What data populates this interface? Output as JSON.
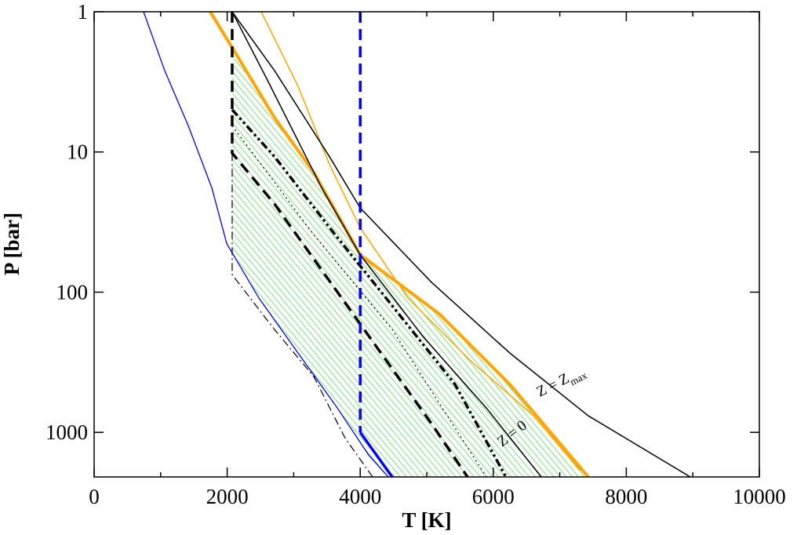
{
  "chart_data": {
    "type": "line",
    "xlabel": "T [K]",
    "ylabel": "P [bar]",
    "xlim": [
      0,
      10000
    ],
    "xticks": [
      0,
      2000,
      4000,
      6000,
      8000,
      10000
    ],
    "xminorticks": [
      1000,
      3000,
      5000,
      7000,
      9000
    ],
    "ylim": [
      1,
      2080
    ],
    "yticks": [
      1,
      10,
      100,
      1000
    ],
    "ylog": true,
    "yinverted": true,
    "grid": false,
    "hatch_color": "#33cc33",
    "series": [
      {
        "color": "#0000ff",
        "width": 1.3,
        "style": "solid",
        "x": [
          743,
          1061,
          1415,
          1769,
          1993,
          2476,
          3066,
          3656,
          4127,
          4422
        ],
        "values": [
          1,
          2.63,
          6.5,
          18,
          45,
          110,
          272,
          670,
          1452,
          2080
        ]
      },
      {
        "color": "#ffa500",
        "width": 4,
        "style": "solid",
        "x": [
          1745,
          2075,
          2712,
          3302,
          3998,
          5189,
          6250,
          7429
        ],
        "values": [
          1,
          1.8,
          5.7,
          14,
          54,
          143,
          455,
          2080
        ]
      },
      {
        "color": "#ffa500",
        "width": 1.5,
        "style": "solid",
        "x": [
          2512,
          3066,
          3538,
          3998,
          4717,
          5660,
          6604,
          7311
        ],
        "values": [
          1,
          3.4,
          12.3,
          34.6,
          110,
          309,
          762,
          1879
        ]
      },
      {
        "color": "#000000",
        "width": 1.5,
        "style": "solid",
        "x": [
          2075,
          2712,
          3538,
          3998,
          5071,
          6250,
          7429,
          8962
        ],
        "values": [
          1,
          2.63,
          10.8,
          25,
          85,
          272,
          762,
          2080
        ]
      },
      {
        "color": "#000000",
        "width": 1.5,
        "style": "solid",
        "x": [
          2075,
          2594,
          3420,
          3998,
          4953,
          5896,
          6722
        ],
        "values": [
          1,
          3,
          18,
          54,
          210,
          670,
          2080
        ]
      },
      {
        "color": "#000000",
        "width": 3.5,
        "style": "dashed",
        "x": [
          2075,
          2075,
          2712,
          3302,
          3892,
          4481,
          5071,
          5613
        ],
        "values": [
          1,
          10.2,
          23.5,
          58,
          143,
          352,
          866,
          2080
        ]
      },
      {
        "color": "#000000",
        "width": 3.5,
        "style": "dashdotdot",
        "x": [
          2075,
          2712,
          3538,
          4481,
          5425,
          6191
        ],
        "values": [
          5,
          10.8,
          34.6,
          125,
          455,
          2080
        ]
      },
      {
        "color": "#000000",
        "width": 1.2,
        "style": "dotted",
        "x": [
          2075,
          3302,
          4481,
          5896
        ],
        "values": [
          6.5,
          39,
          185,
          2080
        ]
      },
      {
        "color": "#000000",
        "width": 1.2,
        "style": "dashdot",
        "x": [
          2075,
          2075,
          2712,
          3302,
          3774,
          4186
        ],
        "values": [
          10.2,
          75,
          185,
          400,
          1100,
          2080
        ]
      },
      {
        "color": "#0000ff",
        "width": 3.5,
        "style": "dashed",
        "x": [
          4000,
          4000
        ],
        "values": [
          1,
          1000
        ]
      },
      {
        "color": "#0000ff",
        "width": 3.5,
        "style": "solid",
        "x": [
          4000,
          4481
        ],
        "values": [
          1000,
          2080
        ]
      }
    ],
    "annotations": [
      {
        "text": "Z = Z",
        "sub": "max"
      },
      {
        "text": "Z = 0"
      }
    ]
  }
}
